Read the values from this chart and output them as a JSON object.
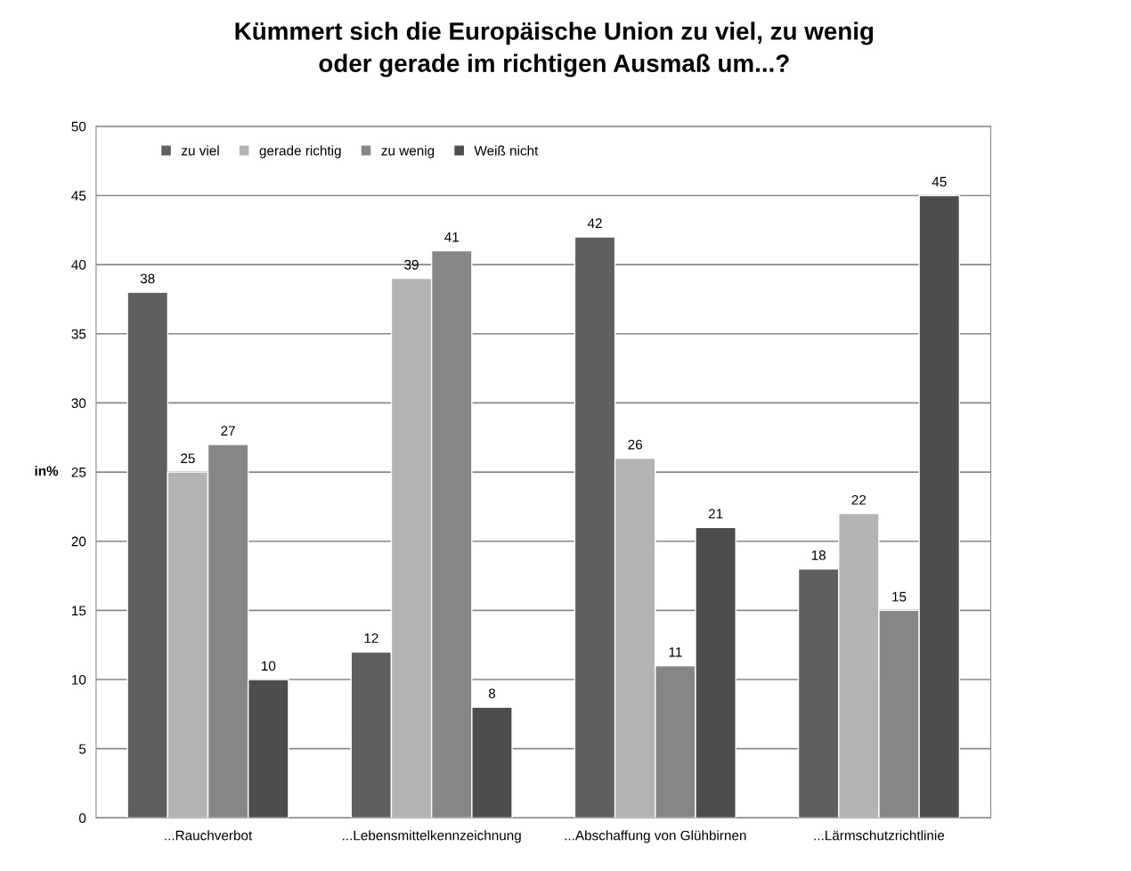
{
  "chart_data": {
    "type": "bar",
    "title": "Kümmert sich die Europäische Union zu viel, zu wenig\noder gerade im richtigen Ausmaß um...?",
    "ylabel": "in%",
    "categories": [
      "...Rauchverbot",
      "...Lebensmittelkennzeichnung",
      "...Abschaffung von Glühbirnen",
      "...Lärmschutzrichtlinie"
    ],
    "series": [
      {
        "name": "zu viel",
        "color": "#5f5f5f",
        "values": [
          38,
          12,
          42,
          18
        ]
      },
      {
        "name": "gerade richtig",
        "color": "#b3b3b3",
        "values": [
          25,
          39,
          26,
          22
        ]
      },
      {
        "name": "zu wenig",
        "color": "#868686",
        "values": [
          27,
          41,
          11,
          15
        ]
      },
      {
        "name": "Weiß nicht",
        "color": "#4d4d4d",
        "values": [
          10,
          8,
          21,
          45
        ]
      }
    ],
    "ylim": [
      0,
      50
    ],
    "yticks": [
      0,
      5,
      10,
      15,
      20,
      25,
      30,
      35,
      40,
      45,
      50
    ],
    "grid": "y",
    "legend": "top left",
    "data_labels": true
  }
}
